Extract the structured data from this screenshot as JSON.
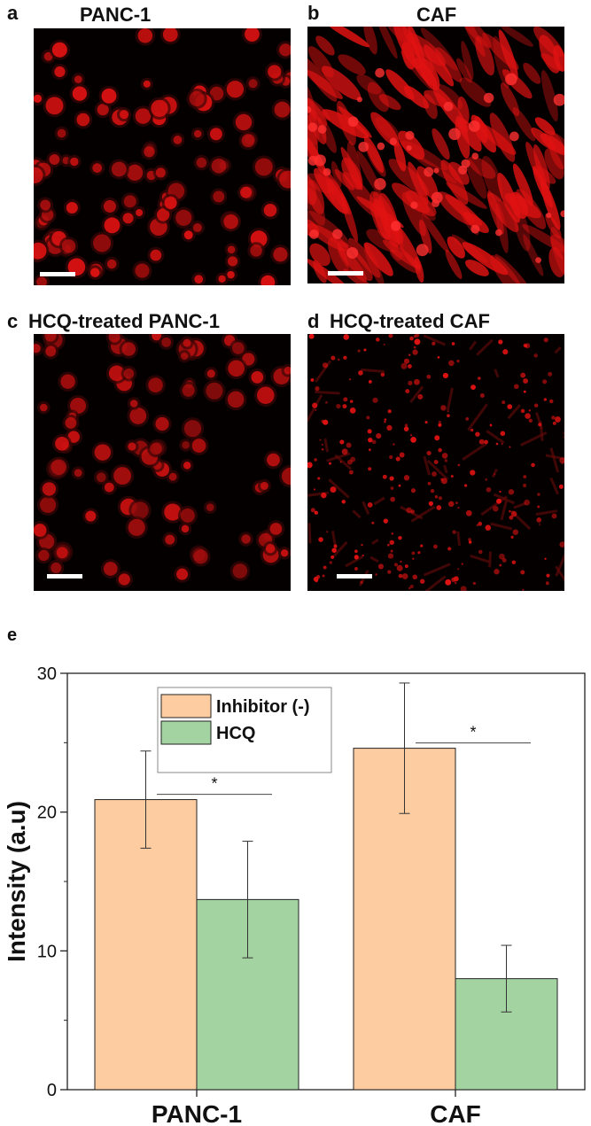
{
  "panels": [
    {
      "letter": "a",
      "title": "PANC-1",
      "kind": "round"
    },
    {
      "letter": "b",
      "title": "CAF",
      "kind": "elongated"
    },
    {
      "letter": "c",
      "title": "HCQ-treated PANC-1",
      "kind": "round-dim"
    },
    {
      "letter": "d",
      "title": "HCQ-treated CAF",
      "kind": "sparse"
    }
  ],
  "chart_panel_letter": "e",
  "chart_data": {
    "type": "bar",
    "categories": [
      "PANC-1",
      "CAF"
    ],
    "series": [
      {
        "name": "Inhibitor (-)",
        "values": [
          20.9,
          24.6
        ],
        "errors": [
          3.5,
          4.7
        ],
        "color": "#fdcca0"
      },
      {
        "name": "HCQ",
        "values": [
          13.7,
          8.0
        ],
        "errors": [
          4.2,
          2.4
        ],
        "color": "#a3d3a1"
      }
    ],
    "ylabel": "Intensity (a.u)",
    "xlabel": "",
    "ylim": [
      0,
      30
    ],
    "yticks": [
      0,
      10,
      20,
      30
    ],
    "significance": [
      "*",
      "*"
    ],
    "legend_position": "top-left",
    "grid": false
  },
  "colors": {
    "cell": "#e01212",
    "background": "#050000"
  }
}
